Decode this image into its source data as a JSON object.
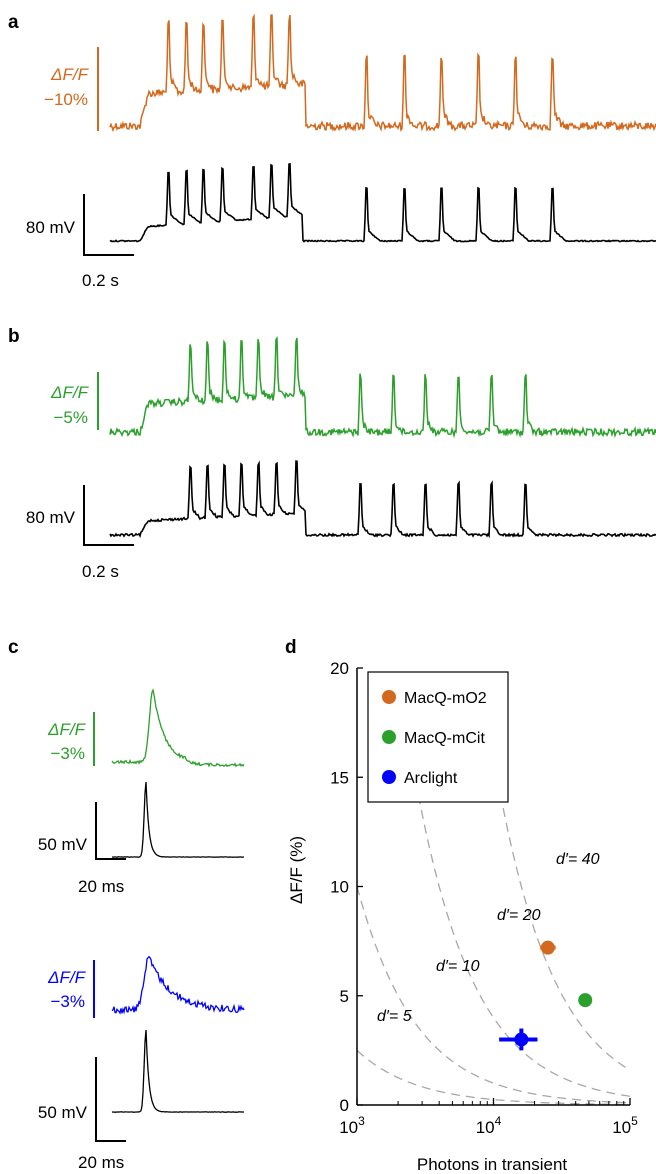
{
  "panels": {
    "a": {
      "label": "a",
      "dff": "ΔF/F",
      "dff_amp": "−10%",
      "volt_label": "80 mV",
      "time_label": "0.2 s",
      "colors": {
        "optical": "#d2691e",
        "electrical": "#000000"
      }
    },
    "b": {
      "label": "b",
      "dff": "ΔF/F",
      "dff_amp": "−5%",
      "volt_label": "80 mV",
      "time_label": "0.2 s",
      "colors": {
        "optical": "#2ca02c",
        "electrical": "#000000"
      }
    },
    "c": {
      "label": "c",
      "top": {
        "dff": "ΔF/F",
        "dff_amp": "−3%",
        "volt_label": "50 mV",
        "time_label": "20 ms",
        "color": "#2ca02c"
      },
      "bottom": {
        "dff": "ΔF/F",
        "dff_amp": "−3%",
        "volt_label": "50 mV",
        "time_label": "20 ms",
        "color": "#0000ff"
      }
    },
    "d": {
      "label": "d"
    }
  },
  "chart_data": {
    "type": "scatter",
    "xlabel": "Photons in transient",
    "ylabel": "ΔF/F (%)",
    "xscale": "log",
    "xlim": [
      1000,
      100000
    ],
    "ylim": [
      0,
      20
    ],
    "xticks": [
      {
        "value": 1000,
        "label": "10",
        "exp": "3"
      },
      {
        "value": 10000,
        "label": "10",
        "exp": "4"
      },
      {
        "value": 100000,
        "label": "10",
        "exp": "5"
      }
    ],
    "yticks": [
      0,
      5,
      10,
      15,
      20
    ],
    "legend_position": "top-left",
    "series": [
      {
        "name": "MacQ-mO2",
        "color": "#d2691e",
        "x": 25000,
        "y": 7.2,
        "x_err": [
          22000,
          28500
        ],
        "y_err": [
          6.9,
          7.5
        ]
      },
      {
        "name": "MacQ-mCit",
        "color": "#2ca02c",
        "x": 47000,
        "y": 4.8,
        "x_err": [
          42000,
          52000
        ],
        "y_err": [
          4.5,
          5.1
        ]
      },
      {
        "name": "Arclight",
        "color": "#0000ff",
        "x": 16000,
        "y": 3.0,
        "x_err": [
          11000,
          21000
        ],
        "y_err": [
          2.5,
          3.5
        ]
      }
    ],
    "iso_lines": [
      {
        "label": "d′= 5",
        "k": 5
      },
      {
        "label": "d′= 10",
        "k": 10
      },
      {
        "label": "d′= 20",
        "k": 20
      },
      {
        "label": "d′= 40",
        "k": 40
      }
    ],
    "grid": false
  }
}
